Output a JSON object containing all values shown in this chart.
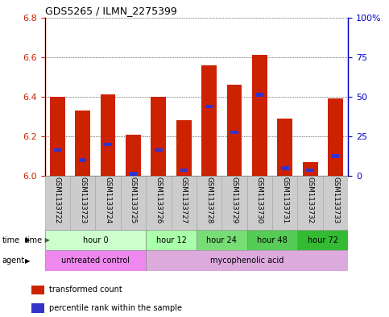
{
  "title": "GDS5265 / ILMN_2275399",
  "samples": [
    "GSM1133722",
    "GSM1133723",
    "GSM1133724",
    "GSM1133725",
    "GSM1133726",
    "GSM1133727",
    "GSM1133728",
    "GSM1133729",
    "GSM1133730",
    "GSM1133731",
    "GSM1133732",
    "GSM1133733"
  ],
  "bar_values": [
    6.4,
    6.33,
    6.41,
    6.21,
    6.4,
    6.28,
    6.56,
    6.46,
    6.61,
    6.29,
    6.07,
    6.39
  ],
  "percentile_values": [
    6.13,
    6.08,
    6.16,
    6.01,
    6.13,
    6.03,
    6.35,
    6.22,
    6.41,
    6.04,
    6.03,
    6.1
  ],
  "ymin": 6.0,
  "ymax": 6.8,
  "left_yticks": [
    6.0,
    6.2,
    6.4,
    6.6,
    6.8
  ],
  "right_ytick_pcts": [
    0,
    25,
    50,
    75,
    100
  ],
  "bar_color": "#cc2200",
  "percentile_color": "#3333cc",
  "grid_color": "#000000",
  "time_groups": [
    {
      "label": "hour 0",
      "start": 0,
      "end": 4,
      "color": "#ccffcc"
    },
    {
      "label": "hour 12",
      "start": 4,
      "end": 6,
      "color": "#aaffaa"
    },
    {
      "label": "hour 24",
      "start": 6,
      "end": 8,
      "color": "#77dd77"
    },
    {
      "label": "hour 48",
      "start": 8,
      "end": 10,
      "color": "#55cc55"
    },
    {
      "label": "hour 72",
      "start": 10,
      "end": 12,
      "color": "#33bb33"
    }
  ],
  "agent_groups": [
    {
      "label": "untreated control",
      "start": 0,
      "end": 4,
      "color": "#ee88ee"
    },
    {
      "label": "mycophenolic acid",
      "start": 4,
      "end": 12,
      "color": "#ddaadd"
    }
  ],
  "legend_items": [
    {
      "label": "transformed count",
      "color": "#cc2200"
    },
    {
      "label": "percentile rank within the sample",
      "color": "#3333cc"
    }
  ],
  "title_fontsize": 9,
  "axis_label_color_left": "#cc2200",
  "axis_label_color_right": "#0000cc",
  "bar_width": 0.6,
  "sample_box_color": "#cccccc",
  "sample_box_edge": "#aaaaaa"
}
